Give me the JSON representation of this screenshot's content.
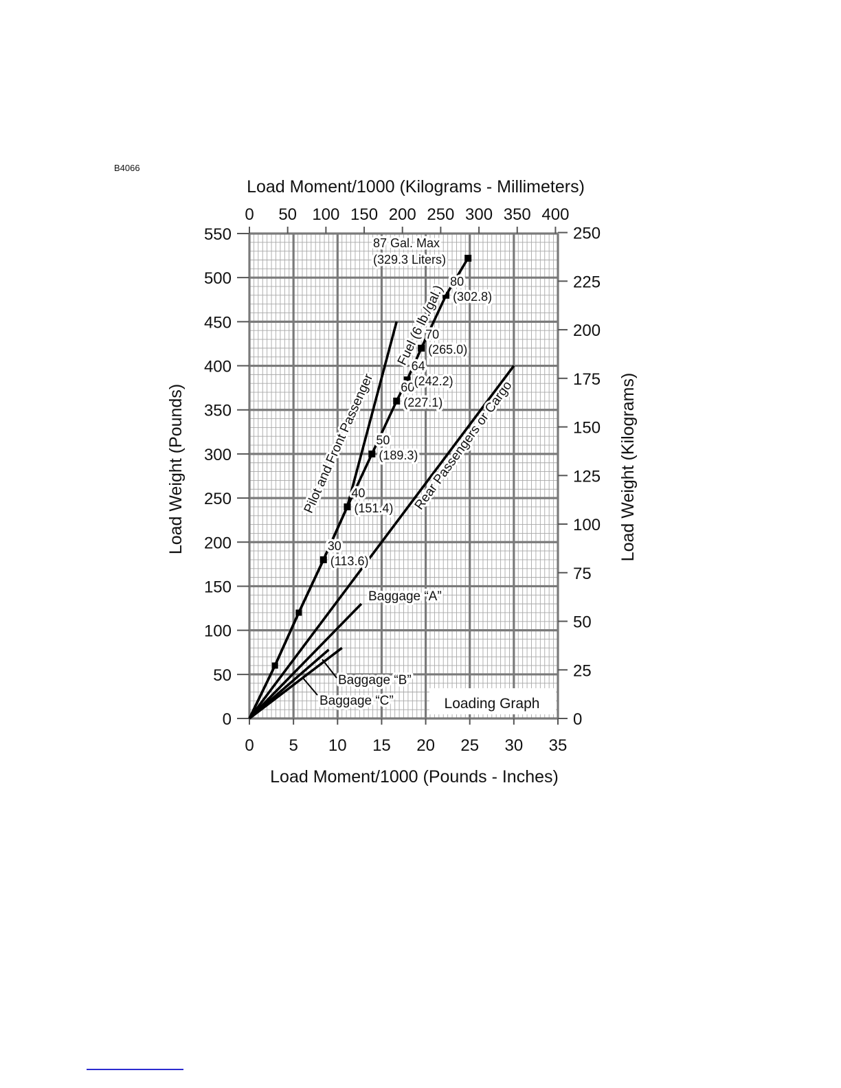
{
  "figure": {
    "id_label": "B4066",
    "inset_title": "Loading Graph"
  },
  "chart_data": {
    "type": "line",
    "title": "Loading Graph",
    "xlabel": "Load Moment/1000 (Pounds - Inches)",
    "ylabel": "Load Weight (Pounds)",
    "x2label": "Load Moment/1000 (Kilograms - Millimeters)",
    "y2label": "Load Weight (Kilograms)",
    "xlim": [
      0,
      35
    ],
    "ylim": [
      0,
      550
    ],
    "x2lim": [
      0,
      403.2
    ],
    "y2lim": [
      0,
      249.5
    ],
    "xticks": [
      "0",
      "5",
      "10",
      "15",
      "20",
      "25",
      "30",
      "35"
    ],
    "yticks": [
      "0",
      "50",
      "100",
      "150",
      "200",
      "250",
      "300",
      "350",
      "400",
      "450",
      "500",
      "550"
    ],
    "x2ticks": [
      "0",
      "50",
      "100",
      "150",
      "200",
      "250",
      "300",
      "350",
      "400"
    ],
    "y2ticks": [
      "0",
      "25",
      "50",
      "75",
      "100",
      "125",
      "150",
      "175",
      "200",
      "225",
      "250"
    ],
    "grid": true,
    "series": [
      {
        "name": "Pilot and Front Passenger",
        "x": [
          0,
          2.9,
          5.6,
          8.4,
          11.1,
          16.7
        ],
        "y": [
          0,
          60,
          120,
          180,
          240,
          450
        ]
      },
      {
        "name": "Fuel (6 lb./gal.)",
        "x": [
          0,
          2.9,
          5.6,
          8.4,
          11.1,
          13.9,
          16.7,
          17.9,
          19.5,
          22.3,
          24.8
        ],
        "y": [
          0,
          60,
          120,
          180,
          240,
          300,
          360,
          384,
          420,
          480,
          522
        ],
        "markers": [
          {
            "gal": "30",
            "liters": "(113.6)",
            "x": 8.4,
            "y": 180
          },
          {
            "gal": "40",
            "liters": "(151.4)",
            "x": 11.1,
            "y": 240
          },
          {
            "gal": "50",
            "liters": "(189.3)",
            "x": 13.9,
            "y": 300
          },
          {
            "gal": "60",
            "liters": "(227.1)",
            "x": 16.7,
            "y": 360
          },
          {
            "gal": "64",
            "liters": "(242.2)",
            "x": 17.9,
            "y": 384
          },
          {
            "gal": "70",
            "liters": "(265.0)",
            "x": 19.5,
            "y": 420
          },
          {
            "gal": "80",
            "liters": "(302.8)",
            "x": 22.3,
            "y": 480
          },
          {
            "gal": "87 Gal. Max",
            "liters": "(329.3 Liters)",
            "x": 24.8,
            "y": 522
          }
        ]
      },
      {
        "name": "Rear Passengers or Cargo",
        "x": [
          0,
          30
        ],
        "y": [
          0,
          400
        ]
      },
      {
        "name": "Baggage “A”",
        "x": [
          0,
          12.7
        ],
        "y": [
          0,
          130
        ]
      },
      {
        "name": "Baggage “B”",
        "x": [
          0,
          9
        ],
        "y": [
          0,
          78
        ]
      },
      {
        "name": "Baggage “C”",
        "x": [
          0,
          10.5
        ],
        "y": [
          0,
          80
        ]
      }
    ]
  }
}
